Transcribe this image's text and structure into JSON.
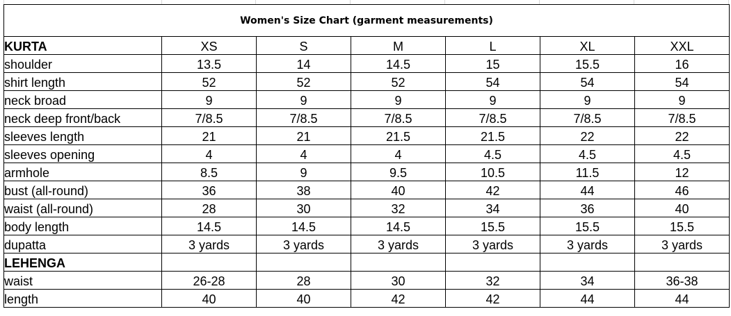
{
  "title": "Women's Size Chart (garment measurements)",
  "sizes": [
    "XS",
    "S",
    "M",
    "L",
    "XL",
    "XXL"
  ],
  "sections": [
    {
      "name": "KURTA",
      "rows": [
        {
          "label": "shoulder",
          "values": [
            "13.5",
            "14",
            "14.5",
            "15",
            "15.5",
            "16"
          ]
        },
        {
          "label": "shirt length",
          "values": [
            "52",
            "52",
            "52",
            "54",
            "54",
            "54"
          ]
        },
        {
          "label": "neck broad",
          "values": [
            "9",
            "9",
            "9",
            "9",
            "9",
            "9"
          ]
        },
        {
          "label": "neck deep front/back",
          "values": [
            "7/8.5",
            "7/8.5",
            "7/8.5",
            "7/8.5",
            "7/8.5",
            "7/8.5"
          ]
        },
        {
          "label": "sleeves length",
          "values": [
            "21",
            "21",
            "21.5",
            "21.5",
            "22",
            "22"
          ]
        },
        {
          "label": "sleeves opening",
          "values": [
            "4",
            "4",
            "4",
            "4.5",
            "4.5",
            "4.5"
          ]
        },
        {
          "label": "armhole",
          "values": [
            "8.5",
            "9",
            "9.5",
            "10.5",
            "11.5",
            "12"
          ]
        },
        {
          "label": "bust (all-round)",
          "values": [
            "36",
            "38",
            "40",
            "42",
            "44",
            "46"
          ]
        },
        {
          "label": "waist (all-round)",
          "values": [
            "28",
            "30",
            "32",
            "34",
            "36",
            "40"
          ]
        },
        {
          "label": "body length",
          "values": [
            "14.5",
            "14.5",
            "14.5",
            "15.5",
            "15.5",
            "15.5"
          ]
        },
        {
          "label": "dupatta",
          "values": [
            "3 yards",
            "3 yards",
            "3 yards",
            "3 yards",
            "3 yards",
            "3 yards"
          ]
        }
      ]
    },
    {
      "name": "LEHENGA",
      "rows": [
        {
          "label": "waist",
          "values": [
            "26-28",
            "28",
            "30",
            "32",
            "34",
            "36-38"
          ]
        },
        {
          "label": "length",
          "values": [
            "40",
            "40",
            "42",
            "42",
            "44",
            "44"
          ]
        }
      ]
    }
  ]
}
